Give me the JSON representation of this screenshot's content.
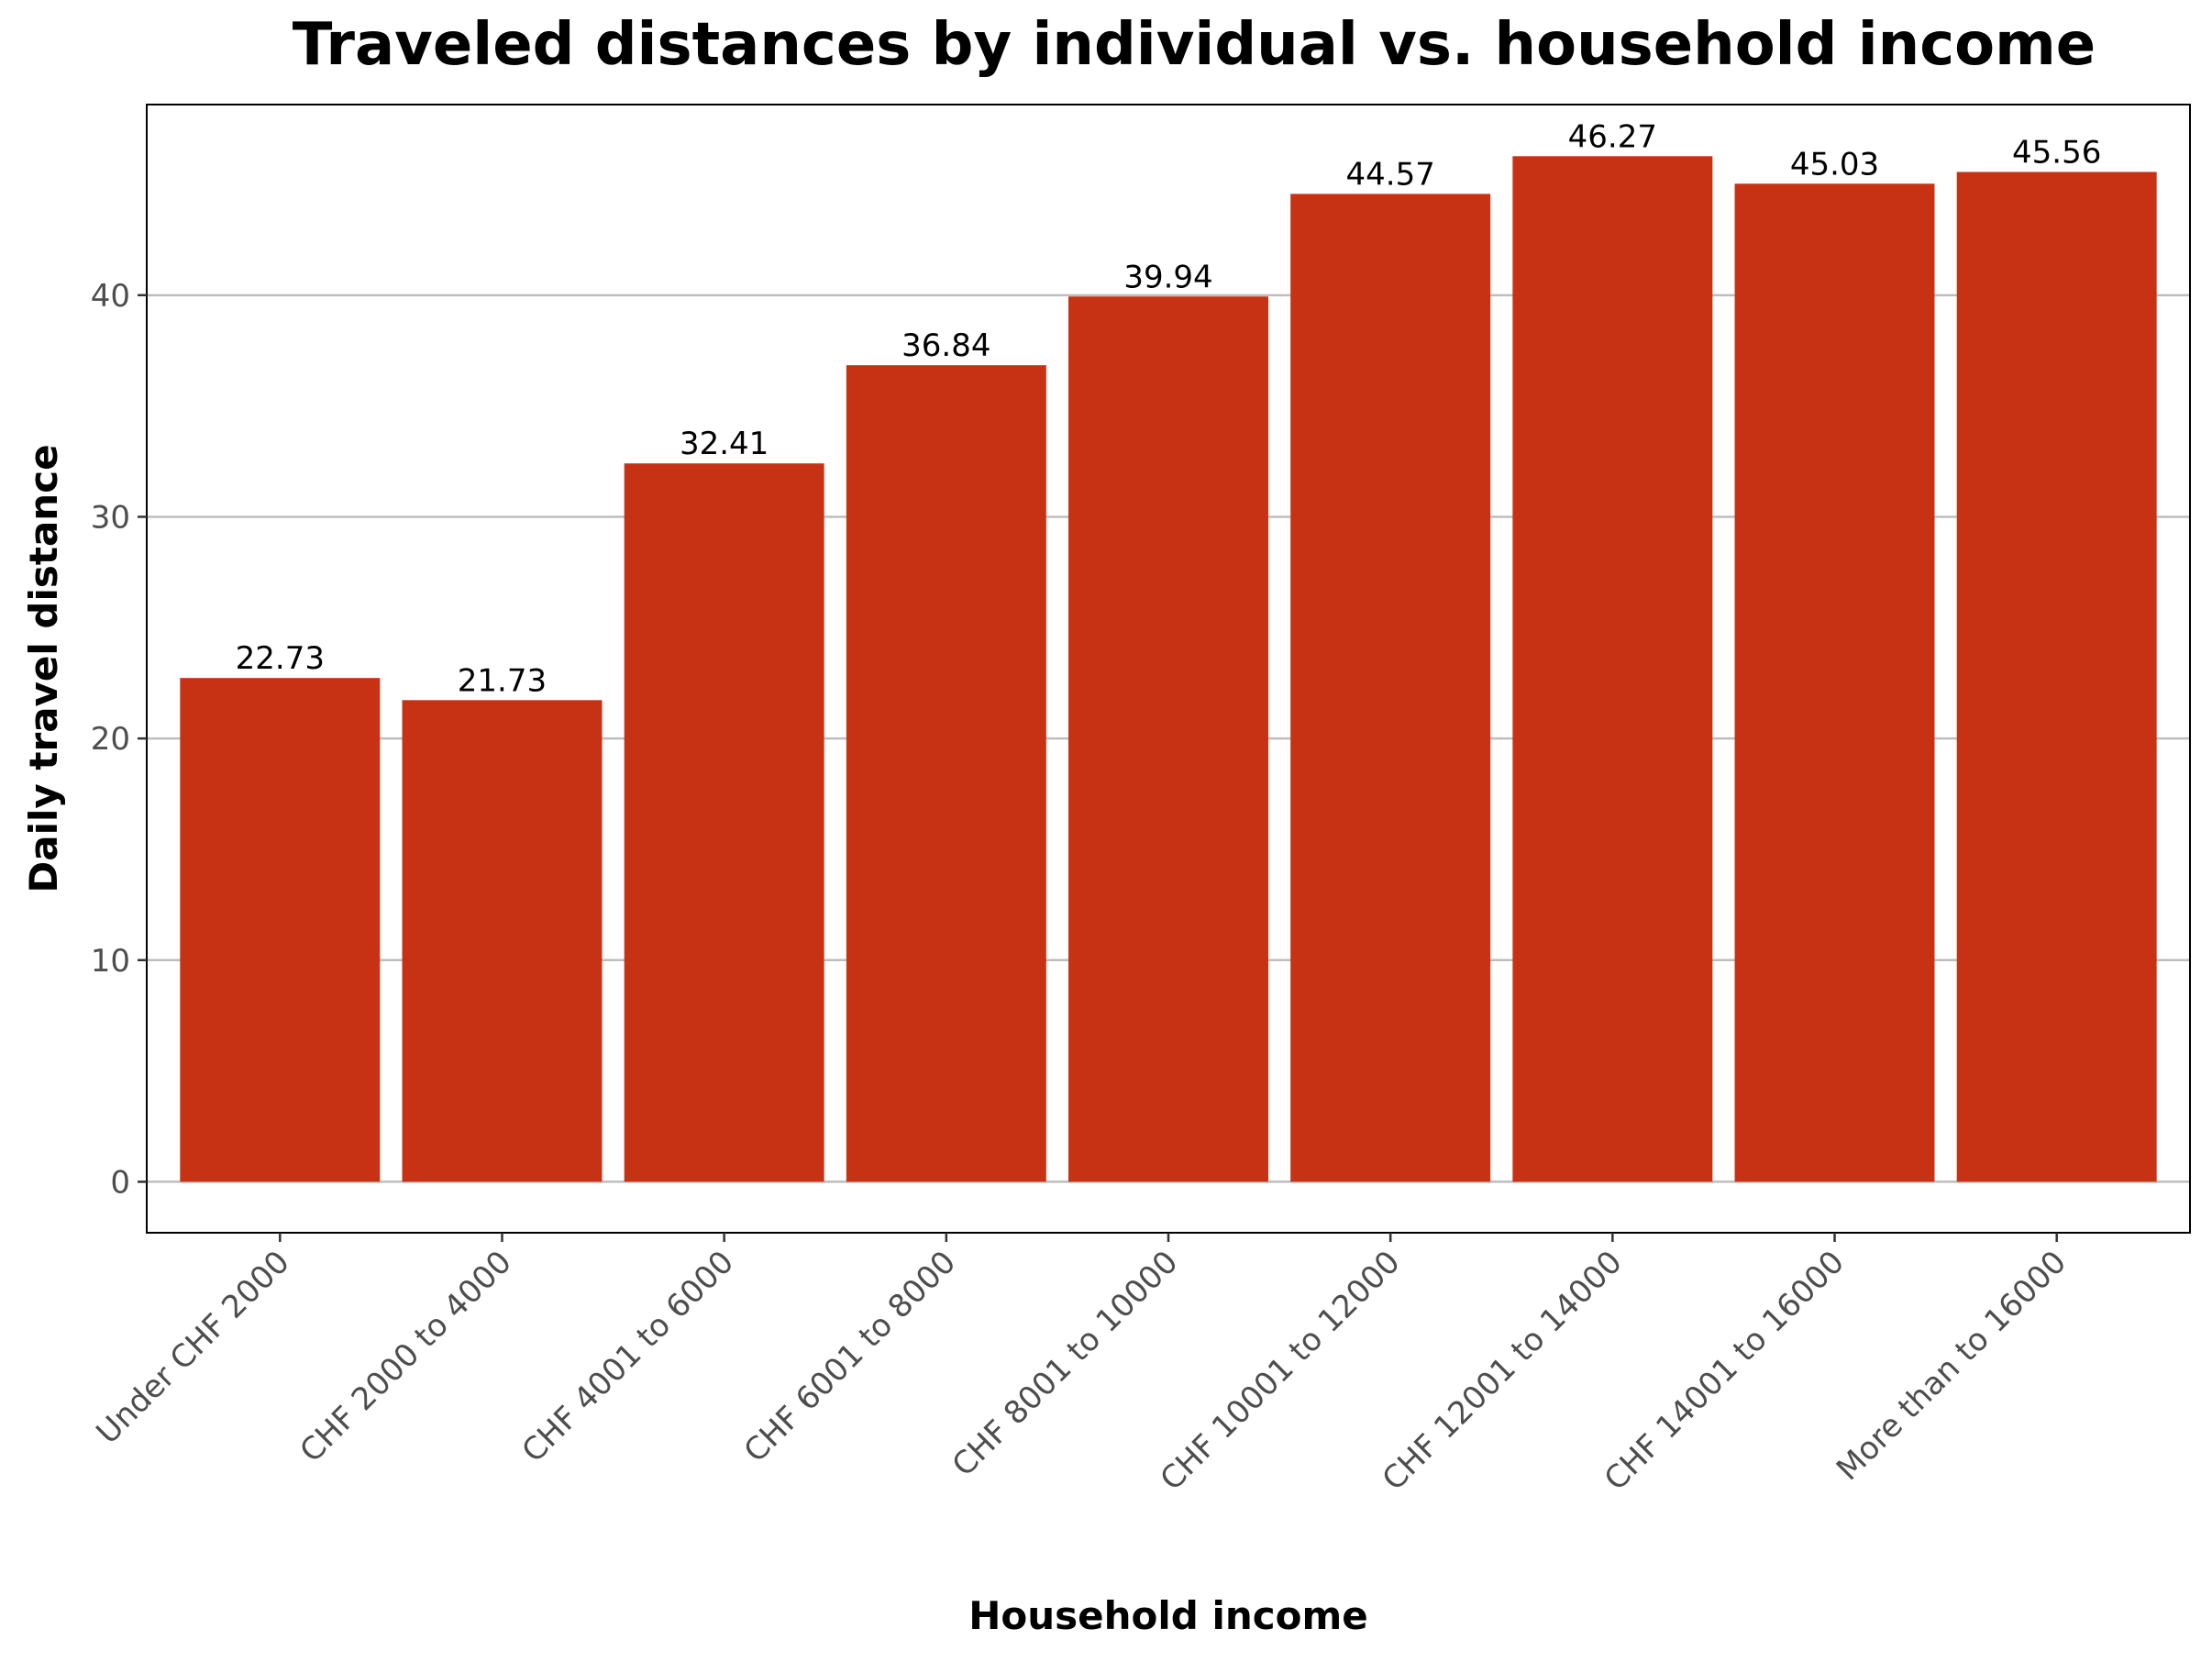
{
  "chart_data": {
    "type": "bar",
    "title": "Traveled distances by individual vs. household income",
    "xlabel": "Household income",
    "ylabel": "Daily travel distance",
    "categories": [
      "Under CHF 2000",
      "CHF 2000 to 4000",
      "CHF 4001 to 6000",
      "CHF 6001 to 8000",
      "CHF 8001 to 10000",
      "CHF 10001 to 12000",
      "CHF 12001 to 14000",
      "CHF 14001 to 16000",
      "More than to 16000"
    ],
    "values": [
      22.73,
      21.73,
      32.41,
      36.84,
      39.94,
      44.57,
      46.27,
      45.03,
      45.56
    ],
    "data_labels": [
      "22.73",
      "21.73",
      "32.41",
      "36.84",
      "39.94",
      "44.57",
      "46.27",
      "45.03",
      "45.56"
    ],
    "ylim": [
      -2.3,
      48.6
    ],
    "yticks": [
      0,
      10,
      20,
      30,
      40
    ],
    "grid": "horizontal",
    "legend": "none",
    "bar_color": "#c83214"
  }
}
